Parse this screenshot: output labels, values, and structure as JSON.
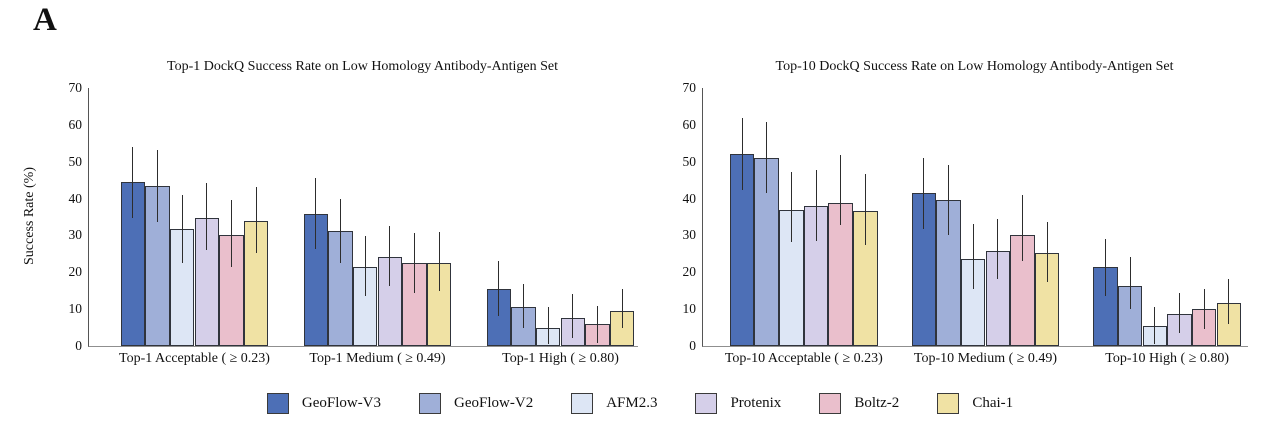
{
  "figure": {
    "panel_label": "A"
  },
  "axes": {
    "ylabel": "Success Rate (%)",
    "yticks": [
      0,
      10,
      20,
      30,
      40,
      50,
      60,
      70
    ],
    "ymax": 70
  },
  "colors": {
    "geoflow_v3": "#4d6fb6",
    "geoflow_v2": "#9fafd8",
    "afm23": "#dde6f5",
    "protenix": "#d5cfe9",
    "boltz2": "#eabfcc",
    "chai1": "#f0e2a4",
    "bar_edge": "#30343c",
    "error_bar": "#2d2d2d",
    "axis_left": "#555555",
    "axis_bottom": "#8f8f8f"
  },
  "legend": {
    "items": [
      {
        "label": "GeoFlow-V3",
        "color": "#4d6fb6"
      },
      {
        "label": "GeoFlow-V2",
        "color": "#9fafd8"
      },
      {
        "label": "AFM2.3",
        "color": "#dde6f5"
      },
      {
        "label": "Protenix",
        "color": "#d5cfe9"
      },
      {
        "label": "Boltz-2",
        "color": "#eabfcc"
      },
      {
        "label": "Chai-1",
        "color": "#f0e2a4"
      }
    ]
  },
  "chart_data": [
    {
      "type": "bar",
      "title": "Top-1 DockQ Success Rate on Low Homology Antibody-Antigen Set",
      "ylabel": "Success Rate (%)",
      "ylim": [
        0,
        70
      ],
      "grid": false,
      "legend_position": "bottom",
      "error_bars": true,
      "categories": [
        "Top-1 Acceptable ( ≥ 0.23)",
        "Top-1 Medium ( ≥ 0.49)",
        "Top-1 High ( ≥ 0.80)"
      ],
      "series": [
        {
          "name": "GeoFlow-V3",
          "color": "#4d6fb6",
          "values": [
            44.4,
            35.9,
            15.5
          ],
          "err_low": [
            34.8,
            26.3,
            8.2
          ],
          "err_high": [
            54.0,
            45.5,
            23.2
          ]
        },
        {
          "name": "GeoFlow-V2",
          "color": "#9fafd8",
          "values": [
            43.3,
            31.1,
            10.7
          ],
          "err_low": [
            33.7,
            22.5,
            5.0
          ],
          "err_high": [
            53.2,
            39.8,
            16.8
          ]
        },
        {
          "name": "AFM2.3",
          "color": "#dde6f5",
          "values": [
            31.8,
            21.5,
            5.0
          ],
          "err_low": [
            22.6,
            13.5,
            0.5
          ],
          "err_high": [
            41.0,
            29.9,
            10.5
          ]
        },
        {
          "name": "Protenix",
          "color": "#d5cfe9",
          "values": [
            34.7,
            24.2,
            7.7
          ],
          "err_low": [
            26.0,
            16.4,
            2.3
          ],
          "err_high": [
            44.1,
            32.5,
            14.1
          ]
        },
        {
          "name": "Boltz-2",
          "color": "#eabfcc",
          "values": [
            30.2,
            22.4,
            5.9
          ],
          "err_low": [
            21.4,
            14.5,
            0.9
          ],
          "err_high": [
            39.5,
            30.8,
            10.9
          ]
        },
        {
          "name": "Chai-1",
          "color": "#f0e2a4",
          "values": [
            33.8,
            22.4,
            9.6
          ],
          "err_low": [
            25.2,
            14.8,
            5.0
          ],
          "err_high": [
            43.2,
            30.8,
            15.5
          ]
        }
      ]
    },
    {
      "type": "bar",
      "title": "Top-10 DockQ Success Rate on Low Homology Antibody-Antigen Set",
      "ylabel": "",
      "ylim": [
        0,
        70
      ],
      "grid": false,
      "legend_position": "bottom",
      "error_bars": true,
      "categories": [
        "Top-10 Acceptable ( ≥ 0.23)",
        "Top-10 Medium ( ≥ 0.49)",
        "Top-10 High ( ≥ 0.80)"
      ],
      "series": [
        {
          "name": "GeoFlow-V3",
          "color": "#4d6fb6",
          "values": [
            52.0,
            41.4,
            21.4
          ],
          "err_low": [
            42.3,
            31.8,
            13.6
          ],
          "err_high": [
            61.8,
            50.9,
            29.1
          ]
        },
        {
          "name": "GeoFlow-V2",
          "color": "#9fafd8",
          "values": [
            51.1,
            39.5,
            16.4
          ],
          "err_low": [
            41.4,
            30.0,
            10.0
          ],
          "err_high": [
            60.9,
            49.1,
            24.1
          ]
        },
        {
          "name": "AFM2.3",
          "color": "#dde6f5",
          "values": [
            36.8,
            23.6,
            5.3
          ],
          "err_low": [
            28.2,
            15.5,
            0.5
          ],
          "err_high": [
            47.3,
            33.2,
            10.5
          ]
        },
        {
          "name": "Protenix",
          "color": "#d5cfe9",
          "values": [
            37.9,
            25.9,
            8.6
          ],
          "err_low": [
            28.6,
            18.2,
            3.6
          ],
          "err_high": [
            47.7,
            34.5,
            14.5
          ]
        },
        {
          "name": "Boltz-2",
          "color": "#eabfcc",
          "values": [
            38.8,
            30.0,
            10.0
          ],
          "err_low": [
            32.7,
            23.2,
            4.5
          ],
          "err_high": [
            51.8,
            40.9,
            15.6
          ]
        },
        {
          "name": "Chai-1",
          "color": "#f0e2a4",
          "values": [
            36.6,
            25.2,
            11.6
          ],
          "err_low": [
            27.3,
            17.3,
            5.9
          ],
          "err_high": [
            46.8,
            33.6,
            18.2
          ]
        }
      ]
    }
  ]
}
